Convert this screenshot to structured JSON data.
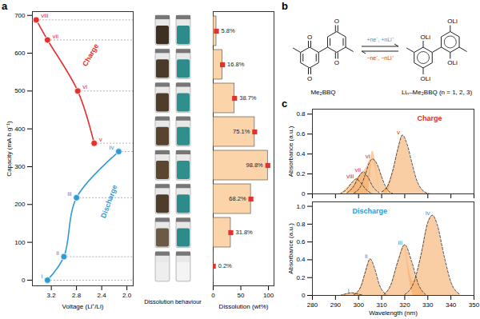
{
  "chart_data": [
    {
      "type": "line",
      "panel": "a",
      "x_label": "Voltage (Li⁺/Li)",
      "y_label": "Capacity (mA h g⁻¹)",
      "xlim": [
        3.5,
        1.9
      ],
      "xticks": [
        3.2,
        2.8,
        2.4,
        {
          "value": 2,
          "label": "2.0"
        }
      ],
      "ylim": [
        -15,
        710
      ],
      "yticks": [
        0,
        100,
        200,
        300,
        400,
        500,
        600,
        700
      ],
      "marker": "circle",
      "series": [
        {
          "name": "Discharge",
          "color": "#2f9bd6",
          "x": [
            3.26,
            3.0,
            2.8,
            2.13
          ],
          "values": [
            0,
            62,
            218,
            340
          ],
          "point_labels": [
            "i",
            "ii",
            "iii",
            "iv"
          ]
        },
        {
          "name": "Charge",
          "color": "#e2312f",
          "x": [
            2.52,
            2.78,
            3.26,
            3.44
          ],
          "values": [
            362,
            500,
            635,
            688
          ],
          "point_labels": [
            "v",
            "vi",
            "vii",
            "viii"
          ]
        }
      ]
    },
    {
      "type": "bar",
      "orientation": "horizontal",
      "x_label": "Dissolution (wt%)",
      "photo_label": "Dissolution behaviour",
      "xlim": [
        0,
        110
      ],
      "xticks": [
        0,
        50,
        100
      ],
      "categories": [
        null,
        null,
        null,
        null,
        null,
        null,
        null,
        null
      ],
      "values": [
        5.8,
        16.8,
        38.7,
        75.1,
        98.8,
        68.2,
        31.8,
        0.2
      ],
      "value_labels": [
        "5.8%",
        "16.8%",
        "38.7%",
        "75.1%",
        "98.8%",
        "68.2%",
        "31.8%",
        "0.2%"
      ],
      "color": "#f9c58d",
      "marker": "square",
      "data_labels": true,
      "tick_labels": "x"
    },
    {
      "type": "area",
      "panel": "c",
      "y_label": "Absorbance (a.u.)",
      "annotation": "Charge",
      "xlim": [
        280,
        350
      ],
      "xticks": [
        280,
        290,
        300,
        310,
        320,
        330,
        340,
        350
      ],
      "ylim": [
        0,
        0.85
      ],
      "yticks": [
        0,
        0.2,
        0.4,
        0.6,
        0.8
      ],
      "tick_labels": "y",
      "color": "#f5a55a",
      "line_style": "dashed",
      "series": [
        {
          "name": "v",
          "color": "#d7302c",
          "x": [
            310,
            313,
            315,
            317,
            319,
            321,
            323,
            325,
            328,
            331
          ],
          "values": [
            0.02,
            0.1,
            0.25,
            0.45,
            0.59,
            0.5,
            0.32,
            0.15,
            0.03,
            0
          ]
        },
        {
          "name": "vi",
          "color": "#d7302c",
          "x": [
            298,
            301,
            303,
            305,
            306,
            308,
            310,
            312,
            315
          ],
          "values": [
            0.01,
            0.08,
            0.2,
            0.33,
            0.35,
            0.3,
            0.17,
            0.06,
            0
          ]
        },
        {
          "name": "vii",
          "color": "#d7302c",
          "x": [
            295,
            298,
            300,
            302,
            304,
            306,
            309
          ],
          "values": [
            0.01,
            0.08,
            0.17,
            0.22,
            0.17,
            0.08,
            0.01
          ]
        },
        {
          "name": "viii",
          "color": "#d7302c",
          "x": [
            292,
            295,
            297,
            299,
            301,
            303,
            306
          ],
          "values": [
            0,
            0.05,
            0.11,
            0.15,
            0.11,
            0.05,
            0
          ]
        }
      ]
    },
    {
      "type": "area",
      "x_label": "Wavelength (nm)",
      "y_label": "Absorbance (a.u.)",
      "annotation": "Discharge",
      "xlim": [
        280,
        350
      ],
      "xticks": [
        280,
        290,
        300,
        310,
        320,
        330,
        340,
        350
      ],
      "ylim": [
        0,
        1.05
      ],
      "yticks": [
        0,
        0.2,
        0.4,
        0.6,
        0.8,
        {
          "value": 1,
          "label": "1.0"
        }
      ],
      "color": "#f5a55a",
      "line_style": "dashed",
      "series": [
        {
          "name": "i",
          "color": "#2f9bd6",
          "x": [
            292,
            295,
            297,
            299,
            302
          ],
          "values": [
            0,
            0.02,
            0.03,
            0.02,
            0
          ]
        },
        {
          "name": "ii",
          "color": "#2f9bd6",
          "x": [
            298,
            301,
            303,
            305,
            307,
            309,
            312
          ],
          "values": [
            0.01,
            0.1,
            0.27,
            0.41,
            0.3,
            0.12,
            0.01
          ]
        },
        {
          "name": "iii",
          "color": "#2f9bd6",
          "x": [
            311,
            314,
            317,
            320,
            323,
            326,
            329
          ],
          "values": [
            0.01,
            0.12,
            0.38,
            0.57,
            0.38,
            0.12,
            0.01
          ]
        },
        {
          "name": "iv",
          "color": "#2f9bd6",
          "x": [
            320,
            324,
            327,
            330,
            332,
            334,
            337,
            340,
            344
          ],
          "values": [
            0.01,
            0.15,
            0.45,
            0.82,
            0.9,
            0.8,
            0.45,
            0.15,
            0.01
          ]
        }
      ]
    }
  ],
  "scheme": {
    "panel": "b",
    "reactant": {
      "name": "Me₂BBQ",
      "atom": "O"
    },
    "product": {
      "name": "Liₙ–Me₂BBQ (n = 1, 2, 3)",
      "atom": "OLi"
    },
    "forward": "+ne⁻, +nLi⁺",
    "reverse": "−ne⁻, −nLi⁺"
  }
}
